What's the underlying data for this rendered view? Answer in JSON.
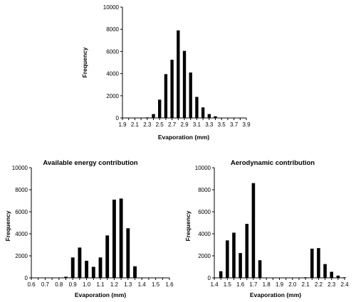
{
  "chart_data": [
    {
      "type": "bar",
      "title": "",
      "xlabel": "Evaporation (mm)",
      "ylabel": "Frequency",
      "ylim": [
        0,
        10000
      ],
      "yticks": [
        0,
        2000,
        4000,
        6000,
        8000,
        10000
      ],
      "xticks": [
        "1.9",
        "2.1",
        "2.3",
        "2.5",
        "2.7",
        "2.9",
        "3.1",
        "3.3",
        "3.5",
        "3.7",
        "3.9"
      ],
      "bins": [
        1.9,
        2.0,
        2.1,
        2.2,
        2.3,
        2.4,
        2.5,
        2.6,
        2.7,
        2.8,
        2.9,
        3.0,
        3.1,
        3.2,
        3.3,
        3.4,
        3.5,
        3.6,
        3.7,
        3.8,
        3.9
      ],
      "values": [
        0,
        0,
        0,
        0,
        50,
        350,
        1650,
        3950,
        5250,
        7900,
        6050,
        4100,
        1900,
        950,
        350,
        150,
        30,
        0,
        0,
        0,
        0
      ]
    },
    {
      "type": "bar",
      "title": "Available energy contribution",
      "xlabel": "Evaporation (mm)",
      "ylabel": "Frequency",
      "ylim": [
        0,
        10000
      ],
      "yticks": [
        0,
        2000,
        4000,
        6000,
        8000,
        10000
      ],
      "xticks": [
        "0.6",
        "0.7",
        "0.8",
        "0.9",
        "1.0",
        "1.1",
        "1.2",
        "1.3",
        "1.4",
        "1.5",
        "1.6"
      ],
      "bins": [
        0.6,
        0.65,
        0.7,
        0.75,
        0.8,
        0.85,
        0.9,
        0.95,
        1.0,
        1.05,
        1.1,
        1.15,
        1.2,
        1.25,
        1.3,
        1.35,
        1.4,
        1.45,
        1.5,
        1.55,
        1.6
      ],
      "values": [
        0,
        0,
        0,
        0,
        0,
        100,
        1850,
        2750,
        1550,
        1000,
        1850,
        3850,
        7100,
        7200,
        4500,
        1050,
        30,
        0,
        0,
        0,
        0
      ]
    },
    {
      "type": "bar",
      "title": "Aerodynamic contribution",
      "xlabel": "Evaporation (mm)",
      "ylabel": "Frequency",
      "ylim": [
        0,
        10000
      ],
      "yticks": [
        0,
        2000,
        4000,
        6000,
        8000,
        10000
      ],
      "xticks": [
        "1.4",
        "1.5",
        "1.6",
        "1.7",
        "1.8",
        "1.9",
        "2.0",
        "2.1",
        "2.2",
        "2.3",
        "2.4"
      ],
      "bins": [
        1.4,
        1.45,
        1.5,
        1.55,
        1.6,
        1.65,
        1.7,
        1.75,
        1.8,
        1.85,
        1.9,
        1.95,
        2.0,
        2.05,
        2.1,
        2.15,
        2.2,
        2.25,
        2.3,
        2.35,
        2.4
      ],
      "values": [
        0,
        600,
        3400,
        4100,
        2250,
        4900,
        8600,
        1600,
        0,
        0,
        0,
        0,
        0,
        0,
        50,
        2650,
        2700,
        1250,
        550,
        200,
        50
      ]
    }
  ]
}
